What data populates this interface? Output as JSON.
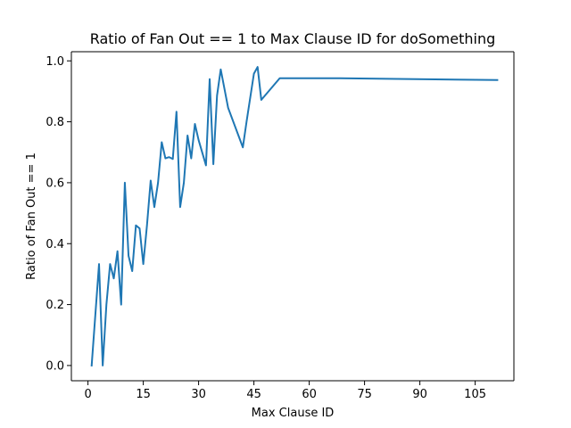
{
  "chart_data": {
    "type": "line",
    "title": "Ratio of Fan Out == 1 to Max Clause ID for doSomething",
    "xlabel": "Max Clause ID",
    "ylabel": "Ratio of Fan Out == 1",
    "xlim": [
      -4.5,
      115.5
    ],
    "ylim": [
      -0.05,
      1.03
    ],
    "xticks": [
      0,
      15,
      30,
      45,
      60,
      75,
      90,
      105
    ],
    "yticks": [
      0.0,
      0.2,
      0.4,
      0.6,
      0.8,
      1.0
    ],
    "xtick_labels": [
      "0",
      "15",
      "30",
      "45",
      "60",
      "75",
      "90",
      "105"
    ],
    "ytick_labels": [
      "0.0",
      "0.2",
      "0.4",
      "0.6",
      "0.8",
      "1.0"
    ],
    "grid": false,
    "series": [
      {
        "color": "#1f77b4",
        "x": [
          1,
          3,
          4,
          5,
          6,
          7,
          8,
          9,
          10,
          11,
          12,
          13,
          14,
          15,
          16,
          17,
          18,
          19,
          20,
          21,
          22,
          23,
          24,
          25,
          26,
          27,
          28,
          29,
          30,
          32,
          33,
          34,
          35,
          36,
          38,
          42,
          43,
          45,
          46,
          47,
          52,
          68,
          111
        ],
        "y": [
          0.0,
          0.333,
          0.0,
          0.2,
          0.333,
          0.286,
          0.375,
          0.2,
          0.6,
          0.36,
          0.31,
          0.46,
          0.45,
          0.333,
          0.46,
          0.607,
          0.52,
          0.6,
          0.733,
          0.68,
          0.684,
          0.678,
          0.833,
          0.52,
          0.6,
          0.755,
          0.68,
          0.793,
          0.74,
          0.657,
          0.94,
          0.661,
          0.886,
          0.972,
          0.846,
          0.716,
          0.8,
          0.958,
          0.98,
          0.872,
          0.943,
          0.943,
          0.937
        ]
      }
    ]
  }
}
